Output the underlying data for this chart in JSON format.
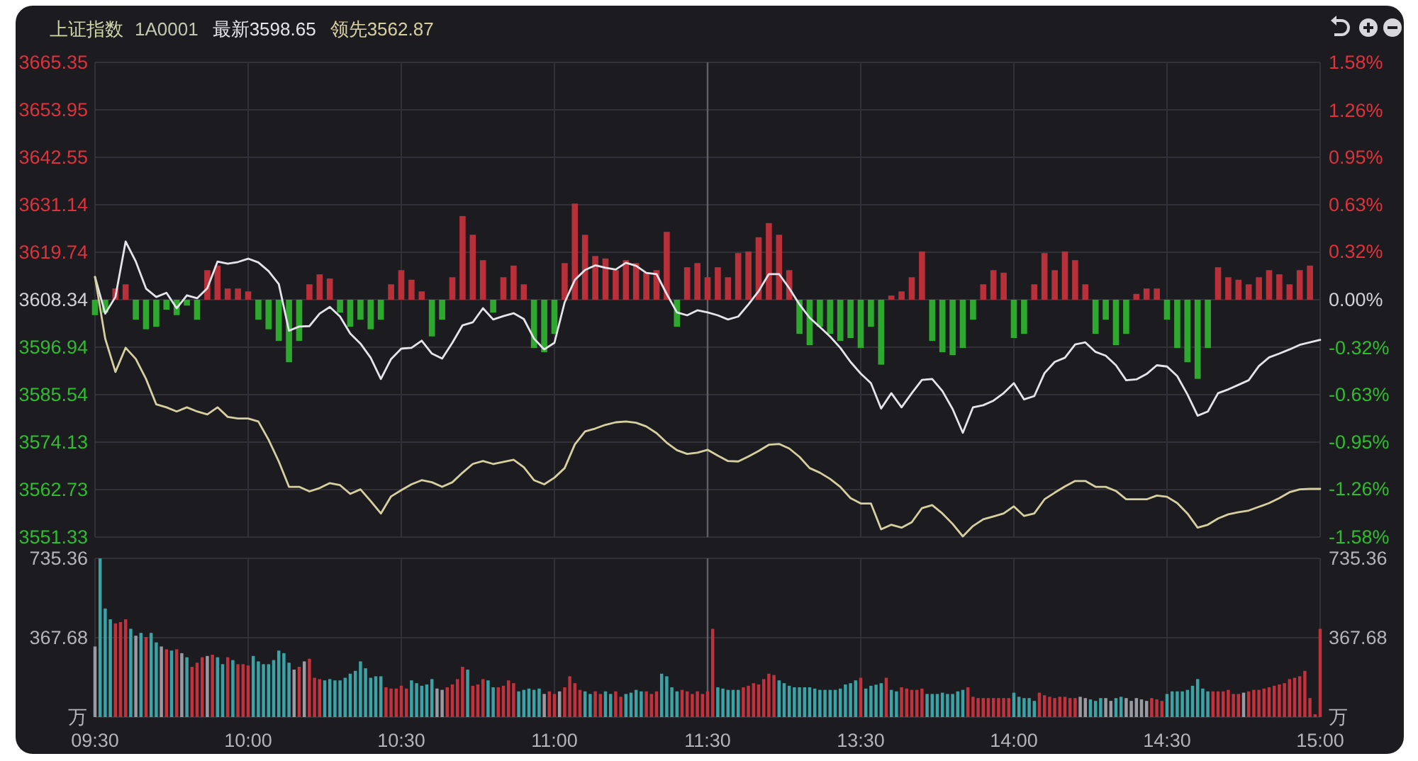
{
  "chart_data": [
    {
      "type": "line",
      "title": "上证指数",
      "subtitle": "1A0001",
      "legend": "top left",
      "grid": true,
      "tick_labels": "y",
      "categories": [
        "09:30",
        null,
        null,
        null,
        null,
        null,
        null,
        null,
        null,
        null,
        null,
        null,
        null,
        null,
        null,
        "10:00",
        null,
        null,
        null,
        null,
        null,
        null,
        null,
        null,
        null,
        null,
        null,
        null,
        null,
        null,
        "10:30",
        null,
        null,
        null,
        null,
        null,
        null,
        null,
        null,
        null,
        null,
        null,
        null,
        null,
        null,
        "11:00",
        null,
        null,
        null,
        null,
        null,
        null,
        null,
        null,
        null,
        null,
        null,
        null,
        null,
        null,
        "11:30",
        null,
        null,
        null,
        null,
        null,
        null,
        null,
        null,
        null,
        null,
        null,
        null,
        null,
        null,
        "13:30",
        null,
        null,
        null,
        null,
        null,
        null,
        null,
        null,
        null,
        null,
        null,
        null,
        null,
        null,
        "14:00",
        null,
        null,
        null,
        null,
        null,
        null,
        null,
        null,
        null,
        null,
        null,
        null,
        null,
        null,
        "14:30",
        null,
        null,
        null,
        null,
        null,
        null,
        null,
        null,
        null,
        null,
        null,
        null,
        null,
        null,
        "15:00"
      ],
      "ylim": [
        3551.33,
        3665.35
      ],
      "yticks": [
        3551.33,
        3562.73,
        3574.13,
        3585.54,
        3596.94,
        3608.34,
        3619.74,
        3631.14,
        3642.55,
        3653.95,
        3665.35
      ],
      "y2lim": [
        -1.58,
        1.58
      ],
      "y2ticks": [
        {
          "value": -1.58,
          "label": "-1.58%"
        },
        {
          "value": -1.26,
          "label": "-1.26%"
        },
        {
          "value": -0.95,
          "label": "-0.95%"
        },
        {
          "value": -0.63,
          "label": "-0.63%"
        },
        {
          "value": -0.32,
          "label": "-0.32%"
        },
        {
          "value": 0,
          "label": "0.00%"
        },
        {
          "value": 0.32,
          "label": "0.32%"
        },
        {
          "value": 0.63,
          "label": "0.63%"
        },
        {
          "value": 0.95,
          "label": "0.95%"
        },
        {
          "value": 1.26,
          "label": "1.26%"
        },
        {
          "value": 1.58,
          "label": "1.58%"
        }
      ],
      "ref_lines": [
        {
          "axis": "x",
          "value": "11:30",
          "color": "#5f5f66"
        }
      ],
      "series": [
        {
          "type": "bar",
          "base": [
            3608.34,
            3608.34,
            3608.34,
            3608.34,
            3608.34,
            3608.34,
            3608.34,
            3608.34,
            3608.34,
            3608.34,
            3608.34,
            3608.34,
            3608.34,
            3608.34,
            3608.34,
            3608.34,
            3608.34,
            3608.34,
            3608.34,
            3608.34,
            3608.34,
            3608.34,
            3608.34,
            3608.34,
            3608.34,
            3608.34,
            3608.34,
            3608.34,
            3608.34,
            3608.34,
            3608.34,
            3608.34,
            3608.34,
            3608.34,
            3608.34,
            3608.34,
            3608.34,
            3608.34,
            3608.34,
            3608.34,
            3608.34,
            3608.34,
            3608.34,
            3608.34,
            3608.34,
            3608.34,
            3608.34,
            3608.34,
            3608.34,
            3608.34,
            3608.34,
            3608.34,
            3608.34,
            3608.34,
            3608.34,
            3608.34,
            3608.34,
            3608.34,
            3608.34,
            3608.34,
            3608.34,
            3608.34,
            3608.34,
            3608.34,
            3608.34,
            3608.34,
            3608.34,
            3608.34,
            3608.34,
            3608.34,
            3608.34,
            3608.34,
            3608.34,
            3608.34,
            3608.34,
            3608.34,
            3608.34,
            3608.34,
            3608.34,
            3608.34,
            3608.34,
            3608.34,
            3608.34,
            3608.34,
            3608.34,
            3608.34,
            3608.34,
            3608.34,
            3608.34,
            3608.34,
            3608.34,
            3608.34,
            3608.34,
            3608.34,
            3608.34,
            3608.34,
            3608.34,
            3608.34,
            3608.34,
            3608.34,
            3608.34,
            3608.34,
            3608.34,
            3608.34,
            3608.34,
            3608.34,
            3608.34,
            3608.34,
            3608.34,
            3608.34,
            3608.34,
            3608.34,
            3608.34,
            3608.34,
            3608.34,
            3608.34,
            3608.34,
            3608.34,
            3608.34,
            3608.34,
            null
          ],
          "values": [
            -3.7,
            -3.1,
            2.7,
            3.7,
            -4.8,
            -7.1,
            -6.5,
            -2.4,
            -3.7,
            -1.4,
            -4.8,
            7.1,
            8.2,
            2.7,
            2.7,
            2.0,
            -4.8,
            -7.1,
            -9.9,
            -15.0,
            -9.9,
            3.7,
            6.1,
            5.1,
            -3.1,
            -6.5,
            -4.8,
            -7.1,
            -4.8,
            3.7,
            7.1,
            4.8,
            2.0,
            -8.8,
            -4.8,
            5.4,
            20.1,
            15.6,
            9.5,
            -3.1,
            5.4,
            8.2,
            3.7,
            -11.6,
            -12.6,
            -8.2,
            8.8,
            23.1,
            15.6,
            10.5,
            9.9,
            7.1,
            9.5,
            8.8,
            6.5,
            7.1,
            16.3,
            -6.5,
            7.8,
            8.8,
            5.4,
            7.8,
            5.4,
            11.2,
            11.6,
            15.0,
            18.4,
            15.6,
            7.1,
            -8.2,
            -10.9,
            -6.5,
            -8.2,
            -9.9,
            -9.2,
            -11.6,
            -6.5,
            -15.6,
            1.0,
            2.0,
            5.4,
            11.6,
            -9.9,
            -12.6,
            -13.3,
            -11.6,
            -4.8,
            3.7,
            7.1,
            6.5,
            -9.2,
            -8.2,
            3.7,
            11.2,
            7.1,
            11.6,
            9.5,
            3.7,
            -8.2,
            -4.8,
            -10.9,
            -8.2,
            1.4,
            2.7,
            2.7,
            -4.8,
            -11.6,
            -15.0,
            -19.0,
            -11.6,
            7.8,
            5.4,
            4.8,
            3.7,
            5.4,
            7.1,
            6.1,
            3.7,
            7.1,
            8.2,
            null
          ],
          "colors": [
            "#2ea82e",
            "#2ea82e",
            "#b8303a",
            "#b8303a",
            "#2ea82e",
            "#2ea82e",
            "#2ea82e",
            "#2ea82e",
            "#2ea82e",
            "#2ea82e",
            "#2ea82e",
            "#b8303a",
            "#b8303a",
            "#b8303a",
            "#b8303a",
            "#b8303a",
            "#2ea82e",
            "#2ea82e",
            "#2ea82e",
            "#2ea82e",
            "#2ea82e",
            "#b8303a",
            "#b8303a",
            "#b8303a",
            "#2ea82e",
            "#2ea82e",
            "#2ea82e",
            "#2ea82e",
            "#2ea82e",
            "#b8303a",
            "#b8303a",
            "#b8303a",
            "#b8303a",
            "#2ea82e",
            "#2ea82e",
            "#b8303a",
            "#b8303a",
            "#b8303a",
            "#b8303a",
            "#2ea82e",
            "#b8303a",
            "#b8303a",
            "#b8303a",
            "#2ea82e",
            "#2ea82e",
            "#2ea82e",
            "#b8303a",
            "#b8303a",
            "#b8303a",
            "#b8303a",
            "#b8303a",
            "#b8303a",
            "#b8303a",
            "#b8303a",
            "#b8303a",
            "#b8303a",
            "#b8303a",
            "#2ea82e",
            "#b8303a",
            "#b8303a",
            "#b8303a",
            "#b8303a",
            "#b8303a",
            "#b8303a",
            "#b8303a",
            "#b8303a",
            "#b8303a",
            "#b8303a",
            "#b8303a",
            "#2ea82e",
            "#2ea82e",
            "#2ea82e",
            "#2ea82e",
            "#2ea82e",
            "#2ea82e",
            "#2ea82e",
            "#2ea82e",
            "#2ea82e",
            "#b8303a",
            "#b8303a",
            "#b8303a",
            "#b8303a",
            "#2ea82e",
            "#2ea82e",
            "#2ea82e",
            "#2ea82e",
            "#2ea82e",
            "#b8303a",
            "#b8303a",
            "#b8303a",
            "#2ea82e",
            "#2ea82e",
            "#b8303a",
            "#b8303a",
            "#b8303a",
            "#b8303a",
            "#b8303a",
            "#b8303a",
            "#2ea82e",
            "#2ea82e",
            "#2ea82e",
            "#2ea82e",
            "#b8303a",
            "#b8303a",
            "#b8303a",
            "#2ea82e",
            "#2ea82e",
            "#2ea82e",
            "#2ea82e",
            "#2ea82e",
            "#b8303a",
            "#b8303a",
            "#b8303a",
            "#b8303a",
            "#b8303a",
            "#b8303a",
            "#b8303a",
            "#b8303a",
            "#b8303a",
            "#b8303a",
            null
          ]
        },
        {
          "name": "最新3598.65",
          "color": "#e4e4ea",
          "values": [
            3613.8,
            3605.0,
            3609.0,
            3622.3,
            3617.5,
            3611.0,
            3609.0,
            3610.0,
            3606.3,
            3609.4,
            3608.7,
            3611.1,
            3617.5,
            3617.0,
            3617.4,
            3618.2,
            3617.3,
            3615.2,
            3612.1,
            3600.9,
            3601.9,
            3602.0,
            3605.0,
            3606.6,
            3604.3,
            3600.2,
            3597.8,
            3594.4,
            3589.3,
            3594.1,
            3596.6,
            3596.8,
            3598.5,
            3595.4,
            3594.2,
            3598.0,
            3602.2,
            3602.9,
            3606.3,
            3603.6,
            3604.4,
            3605.1,
            3603.7,
            3599.0,
            3596.4,
            3598.0,
            3607.7,
            3613.1,
            3615.5,
            3616.6,
            3616.0,
            3615.6,
            3617.2,
            3616.5,
            3614.8,
            3614.5,
            3609.7,
            3605.3,
            3604.6,
            3605.8,
            3605.3,
            3604.6,
            3603.6,
            3604.3,
            3607.2,
            3610.4,
            3614.5,
            3614.5,
            3611.1,
            3607.2,
            3604.0,
            3601.8,
            3599.5,
            3596.8,
            3593.4,
            3590.6,
            3588.3,
            3582.2,
            3585.9,
            3582.5,
            3585.9,
            3589.1,
            3589.3,
            3586.4,
            3582.1,
            3576.4,
            3582.5,
            3583.0,
            3584.1,
            3585.9,
            3588.3,
            3584.4,
            3585.2,
            3590.7,
            3593.4,
            3594.4,
            3597.6,
            3598.1,
            3595.8,
            3594.9,
            3592.6,
            3589.0,
            3589.2,
            3590.5,
            3592.6,
            3592.3,
            3590.0,
            3585.6,
            3580.5,
            3581.5,
            3585.9,
            3586.8,
            3587.9,
            3589.0,
            3592.4,
            3594.5,
            3595.4,
            3596.4,
            3597.5,
            3598.1,
            3598.7
          ]
        },
        {
          "name": "领先3562.87",
          "color": "#d6d0a0",
          "values": [
            3613.8,
            3599.0,
            3591.0,
            3596.8,
            3594.1,
            3589.3,
            3583.2,
            3582.5,
            3581.5,
            3582.5,
            3581.5,
            3580.8,
            3582.5,
            3580.2,
            3579.8,
            3579.8,
            3579.1,
            3574.7,
            3569.5,
            3563.4,
            3563.4,
            3562.3,
            3563.1,
            3564.3,
            3563.8,
            3561.7,
            3562.8,
            3560.0,
            3557.0,
            3561.1,
            3562.6,
            3564.0,
            3565.0,
            3564.5,
            3563.4,
            3564.5,
            3566.8,
            3568.9,
            3569.6,
            3568.9,
            3569.4,
            3569.9,
            3568.1,
            3565.0,
            3564.0,
            3565.6,
            3567.9,
            3573.6,
            3576.7,
            3577.4,
            3578.3,
            3578.9,
            3579.1,
            3578.8,
            3577.9,
            3576.3,
            3574.0,
            3572.2,
            3571.3,
            3571.6,
            3572.3,
            3570.9,
            3569.6,
            3569.5,
            3570.7,
            3572.0,
            3573.5,
            3573.7,
            3572.6,
            3570.6,
            3567.9,
            3566.8,
            3565.3,
            3563.4,
            3560.7,
            3559.4,
            3559.4,
            3553.2,
            3554.3,
            3553.6,
            3554.9,
            3558.3,
            3559.0,
            3557.0,
            3554.5,
            3551.5,
            3554.0,
            3555.6,
            3556.3,
            3557.0,
            3558.7,
            3556.4,
            3557.0,
            3560.4,
            3562.0,
            3563.5,
            3564.8,
            3564.8,
            3563.4,
            3563.4,
            3562.4,
            3560.4,
            3560.4,
            3560.4,
            3561.3,
            3561.0,
            3559.5,
            3557.0,
            3553.6,
            3554.3,
            3555.8,
            3556.8,
            3557.3,
            3557.7,
            3558.6,
            3559.5,
            3560.7,
            3562.1,
            3562.8,
            3562.9,
            3562.9
          ]
        }
      ]
    },
    {
      "type": "bar",
      "grid": true,
      "categories": [
        "09:30",
        null,
        null,
        null,
        null,
        null,
        null,
        null,
        null,
        null,
        null,
        null,
        null,
        null,
        null,
        null,
        null,
        null,
        null,
        null,
        null,
        null,
        null,
        null,
        null,
        null,
        null,
        null,
        null,
        null,
        "10:00",
        null,
        null,
        null,
        null,
        null,
        null,
        null,
        null,
        null,
        null,
        null,
        null,
        null,
        null,
        null,
        null,
        null,
        null,
        null,
        null,
        null,
        null,
        null,
        null,
        null,
        null,
        null,
        null,
        null,
        "10:30",
        null,
        null,
        null,
        null,
        null,
        null,
        null,
        null,
        null,
        null,
        null,
        null,
        null,
        null,
        null,
        null,
        null,
        null,
        null,
        null,
        null,
        null,
        null,
        null,
        null,
        null,
        null,
        null,
        null,
        "11:00",
        null,
        null,
        null,
        null,
        null,
        null,
        null,
        null,
        null,
        null,
        null,
        null,
        null,
        null,
        null,
        null,
        null,
        null,
        null,
        null,
        null,
        null,
        null,
        null,
        null,
        null,
        null,
        null,
        null,
        "11:30",
        null,
        null,
        null,
        null,
        null,
        null,
        null,
        null,
        null,
        null,
        null,
        null,
        null,
        null,
        null,
        null,
        null,
        null,
        null,
        null,
        null,
        null,
        null,
        null,
        null,
        null,
        null,
        null,
        null,
        "13:30",
        null,
        null,
        null,
        null,
        null,
        null,
        null,
        null,
        null,
        null,
        null,
        null,
        null,
        null,
        null,
        null,
        null,
        null,
        null,
        null,
        null,
        null,
        null,
        null,
        null,
        null,
        null,
        null,
        null,
        "14:00",
        null,
        null,
        null,
        null,
        null,
        null,
        null,
        null,
        null,
        null,
        null,
        null,
        null,
        null,
        null,
        null,
        null,
        null,
        null,
        null,
        null,
        null,
        null,
        null,
        null,
        null,
        null,
        null,
        null,
        "14:30",
        null,
        null,
        null,
        null,
        null,
        null,
        null,
        null,
        null,
        null,
        null,
        null,
        null,
        null,
        null,
        null,
        null,
        null,
        null,
        null,
        null,
        null,
        null,
        null,
        null,
        null,
        null,
        null,
        null,
        "15:00"
      ],
      "ylim": [
        0,
        735.36
      ],
      "yticks": [
        {
          "value": 0,
          "label": "万"
        },
        367.68,
        735.36
      ],
      "y2lim": [
        0,
        735.36
      ],
      "y2ticks": [
        {
          "value": 0,
          "label": "万"
        },
        367.68,
        735.36
      ],
      "ref_lines": [
        {
          "axis": "x",
          "value": "11:30",
          "color": "#5f5f66"
        }
      ],
      "series": [
        {
          "values": [
            327,
            735,
            503,
            453,
            434,
            440,
            453,
            409,
            377,
            390,
            371,
            390,
            346,
            327,
            314,
            308,
            314,
            296,
            277,
            233,
            252,
            277,
            283,
            289,
            277,
            245,
            277,
            264,
            245,
            245,
            239,
            283,
            258,
            245,
            245,
            264,
            308,
            296,
            252,
            220,
            233,
            258,
            270,
            182,
            176,
            170,
            176,
            170,
            170,
            182,
            201,
            214,
            258,
            226,
            182,
            189,
            189,
            138,
            132,
            132,
            145,
            132,
            170,
            157,
            145,
            151,
            176,
            132,
            126,
            138,
            151,
            176,
            233,
            220,
            145,
            151,
            176,
            170,
            138,
            138,
            145,
            170,
            157,
            119,
            126,
            132,
            126,
            132,
            107,
            119,
            107,
            119,
            138,
            189,
            157,
            126,
            119,
            107,
            119,
            107,
            119,
            107,
            119,
            94,
            107,
            113,
            126,
            119,
            119,
            107,
            119,
            201,
            189,
            138,
            119,
            126,
            119,
            107,
            119,
            107,
            119,
            409,
            138,
            132,
            126,
            126,
            126,
            138,
            145,
            157,
            151,
            176,
            201,
            195,
            170,
            157,
            145,
            138,
            138,
            138,
            138,
            132,
            126,
            126,
            126,
            126,
            132,
            151,
            157,
            170,
            182,
            132,
            145,
            150,
            157,
            182,
            126,
            119,
            138,
            132,
            126,
            126,
            132,
            107,
            107,
            107,
            113,
            107,
            107,
            119,
            126,
            138,
            94,
            88,
            88,
            88,
            88,
            88,
            88,
            88,
            113,
            94,
            88,
            88,
            75,
            113,
            101,
            94,
            88,
            94,
            94,
            88,
            88,
            94,
            88,
            82,
            75,
            88,
            88,
            75,
            88,
            94,
            88,
            75,
            88,
            82,
            75,
            88,
            82,
            75,
            107,
            119,
            119,
            119,
            126,
            145,
            176,
            132,
            119,
            119,
            119,
            119,
            126,
            107,
            107,
            113,
            119,
            126,
            126,
            132,
            138,
            145,
            151,
            157,
            176,
            182,
            189,
            214,
            88,
            13,
            409
          ],
          "colors": [
            "#9a9aa2",
            "#3ba3a6",
            "#3ba3a6",
            "#3ba3a6",
            "#c0323c",
            "#c0323c",
            "#c0323c",
            "#3ba3a6",
            "#9a9aa2",
            "#3ba3a6",
            "#c0323c",
            "#3ba3a6",
            "#3ba3a6",
            "#9a9aa2",
            "#c0323c",
            "#3ba3a6",
            "#c0323c",
            "#9a9aa2",
            "#3ba3a6",
            "#c0323c",
            "#c0323c",
            "#c0323c",
            "#9a9aa2",
            "#c0323c",
            "#3ba3a6",
            "#3ba3a6",
            "#c0323c",
            "#3ba3a6",
            "#c0323c",
            "#c0323c",
            "#c0323c",
            "#3ba3a6",
            "#3ba3a6",
            "#3ba3a6",
            "#3ba3a6",
            "#3ba3a6",
            "#3ba3a6",
            "#3ba3a6",
            "#3ba3a6",
            "#9a9aa2",
            "#c0323c",
            "#9a9aa2",
            "#c0323c",
            "#c0323c",
            "#c0323c",
            "#3ba3a6",
            "#3ba3a6",
            "#3ba3a6",
            "#3ba3a6",
            "#3ba3a6",
            "#3ba3a6",
            "#3ba3a6",
            "#3ba3a6",
            "#3ba3a6",
            "#3ba3a6",
            "#3ba3a6",
            "#3ba3a6",
            "#c0323c",
            "#c0323c",
            "#c0323c",
            "#c0323c",
            "#c0323c",
            "#3ba3a6",
            "#3ba3a6",
            "#3ba3a6",
            "#3ba3a6",
            "#3ba3a6",
            "#9a9aa2",
            "#9a9aa2",
            "#c0323c",
            "#c0323c",
            "#c0323c",
            "#c0323c",
            "#3ba3a6",
            "#c0323c",
            "#c0323c",
            "#c0323c",
            "#3ba3a6",
            "#3ba3a6",
            "#c0323c",
            "#c0323c",
            "#c0323c",
            "#c0323c",
            "#3ba3a6",
            "#3ba3a6",
            "#3ba3a6",
            "#3ba3a6",
            "#3ba3a6",
            "#9a9aa2",
            "#c0323c",
            "#c0323c",
            "#9a9aa2",
            "#c0323c",
            "#c0323c",
            "#c0323c",
            "#c0323c",
            "#3ba3a6",
            "#3ba3a6",
            "#c0323c",
            "#c0323c",
            "#3ba3a6",
            "#3ba3a6",
            "#c0323c",
            "#c0323c",
            "#3ba3a6",
            "#3ba3a6",
            "#3ba3a6",
            "#3ba3a6",
            "#c0323c",
            "#c0323c",
            "#c0323c",
            "#3ba3a6",
            "#3ba3a6",
            "#3ba3a6",
            "#3ba3a6",
            "#c0323c",
            "#c0323c",
            "#c0323c",
            "#c0323c",
            "#c0323c",
            "#c0323c",
            "#c0323c",
            "#3ba3a6",
            "#3ba3a6",
            "#3ba3a6",
            "#3ba3a6",
            "#3ba3a6",
            "#c0323c",
            "#c0323c",
            "#c0323c",
            "#c0323c",
            "#c0323c",
            "#c0323c",
            "#c0323c",
            "#3ba3a6",
            "#3ba3a6",
            "#3ba3a6",
            "#3ba3a6",
            "#3ba3a6",
            "#3ba3a6",
            "#3ba3a6",
            "#3ba3a6",
            "#3ba3a6",
            "#3ba3a6",
            "#3ba3a6",
            "#3ba3a6",
            "#3ba3a6",
            "#3ba3a6",
            "#3ba3a6",
            "#3ba3a6",
            "#c0323c",
            "#3ba3a6",
            "#3ba3a6",
            "#3ba3a6",
            "#3ba3a6",
            "#c0323c",
            "#3ba3a6",
            "#3ba3a6",
            "#c0323c",
            "#c0323c",
            "#c0323c",
            "#c0323c",
            "#c0323c",
            "#3ba3a6",
            "#3ba3a6",
            "#3ba3a6",
            "#3ba3a6",
            "#3ba3a6",
            "#3ba3a6",
            "#3ba3a6",
            "#3ba3a6",
            "#c0323c",
            "#c0323c",
            "#c0323c",
            "#c0323c",
            "#c0323c",
            "#c0323c",
            "#c0323c",
            "#c0323c",
            "#c0323c",
            "#3ba3a6",
            "#3ba3a6",
            "#3ba3a6",
            "#3ba3a6",
            "#3ba3a6",
            "#c0323c",
            "#c0323c",
            "#c0323c",
            "#c0323c",
            "#c0323c",
            "#c0323c",
            "#c0323c",
            "#c0323c",
            "#9a9aa2",
            "#9a9aa2",
            "#3ba3a6",
            "#3ba3a6",
            "#3ba3a6",
            "#9a9aa2",
            "#9a9aa2",
            "#3ba3a6",
            "#3ba3a6",
            "#9a9aa2",
            "#9a9aa2",
            "#9a9aa2",
            "#9a9aa2",
            "#9a9aa2",
            "#c0323c",
            "#c0323c",
            "#c0323c",
            "#3ba3a6",
            "#3ba3a6",
            "#3ba3a6",
            "#3ba3a6",
            "#3ba3a6",
            "#3ba3a6",
            "#3ba3a6",
            "#3ba3a6",
            "#3ba3a6",
            "#c0323c",
            "#c0323c",
            "#c0323c",
            "#c0323c",
            "#c0323c",
            "#c0323c",
            "#9a9aa2",
            "#c0323c",
            "#c0323c",
            "#c0323c",
            "#c0323c",
            "#c0323c",
            "#c0323c",
            "#c0323c",
            "#c0323c",
            "#c0323c",
            "#c0323c",
            "#c0323c",
            "#c0323c",
            "#c0323c",
            "#c0323c",
            "#c0323c"
          ]
        }
      ]
    }
  ]
}
